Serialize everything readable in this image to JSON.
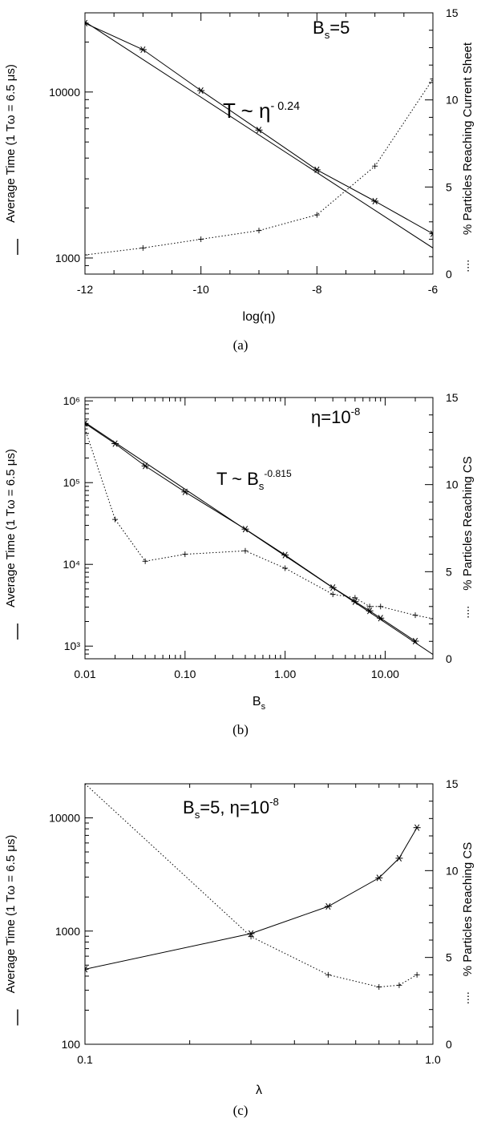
{
  "panels": [
    {
      "caption": "(a)",
      "annotation_main": "B",
      "annotation_sub": "s",
      "annotation_rest": "=5",
      "fit_label_base": "T ~ η",
      "fit_label_exp": "- 0.24",
      "xlabel": "log(η)",
      "ylabel_left": "Average Time (1 Tω = 6.5 μs)",
      "ylabel_right": "% Particles Reaching Current Sheet",
      "x_ticks": [
        "-12",
        "-10",
        "-8",
        "-6"
      ],
      "y_left_ticks": [
        "1000",
        "10000"
      ],
      "y_right_ticks": [
        "0",
        "5",
        "10",
        "15"
      ]
    },
    {
      "caption": "(b)",
      "annotation_main": "η=10",
      "annotation_sup": "-8",
      "fit_label_base": "T ~ B",
      "fit_label_sub": "s",
      "fit_label_exp": "-0.815",
      "xlabel": "B",
      "xlabel_sub": "s",
      "ylabel_left": "Average Time (1 Tω = 6.5 μs)",
      "ylabel_right": "% Particles Reaching CS",
      "x_ticks": [
        "0.01",
        "0.10",
        "1.00",
        "10.00"
      ],
      "y_left_ticks": [
        "10³",
        "10⁴",
        "10⁵",
        "10⁶"
      ],
      "y_right_ticks": [
        "0",
        "5",
        "10",
        "15"
      ]
    },
    {
      "caption": "(c)",
      "annotation_main": "B",
      "annotation_sub": "s",
      "annotation_rest": "=5, η=10",
      "annotation_sup": "-8",
      "xlabel": "λ",
      "ylabel_left": "Average Time (1 Tω = 6.5 μs)",
      "ylabel_right": "% Particles Reaching CS",
      "x_ticks": [
        "0.1",
        "1.0"
      ],
      "y_left_ticks": [
        "100",
        "1000",
        "10000"
      ],
      "y_right_ticks": [
        "0",
        "5",
        "10",
        "15"
      ]
    }
  ],
  "chart_data": [
    {
      "type": "line",
      "title": "",
      "xlabel": "log(η)",
      "ylabel": "Average Time (1 Tω = 6.5 μs)",
      "y2label": "% Particles Reaching Current Sheet",
      "xlim": [
        -12,
        -6
      ],
      "ylim": [
        800,
        30000
      ],
      "yscale": "log",
      "y2lim": [
        0,
        15
      ],
      "series": [
        {
          "style": "solid",
          "marker": "asterisk",
          "axis": "left",
          "x": [
            -12,
            -11,
            -10,
            -9,
            -8,
            -7,
            -6
          ],
          "values": [
            26000,
            18000,
            10200,
            5900,
            3400,
            2200,
            1400
          ]
        },
        {
          "style": "solid",
          "marker": "none",
          "axis": "left",
          "fit": true,
          "x": [
            -12,
            -6
          ],
          "values": [
            26500,
            1150
          ]
        },
        {
          "style": "dotted",
          "marker": "plus",
          "axis": "right",
          "x": [
            -12,
            -11,
            -10,
            -9,
            -8,
            -7,
            -6
          ],
          "values": [
            1.1,
            1.5,
            2.0,
            2.5,
            3.4,
            6.2,
            11.2
          ]
        }
      ]
    },
    {
      "type": "line",
      "title": "",
      "xlabel": "Bs",
      "ylabel": "Average Time (1 Tω = 6.5 μs)",
      "y2label": "% Particles Reaching CS",
      "xlim": [
        0.01,
        30
      ],
      "xscale": "log",
      "ylim": [
        700,
        1100000
      ],
      "yscale": "log",
      "y2lim": [
        0,
        15
      ],
      "series": [
        {
          "style": "solid",
          "marker": "asterisk",
          "axis": "left",
          "x": [
            0.01,
            0.02,
            0.04,
            0.1,
            0.4,
            1,
            3,
            5,
            7,
            9,
            20
          ],
          "values": [
            530000,
            300000,
            160000,
            77000,
            27000,
            13000,
            5200,
            3500,
            2700,
            2200,
            1150
          ]
        },
        {
          "style": "solid",
          "marker": "none",
          "axis": "left",
          "fit": true,
          "x": [
            0.01,
            30
          ],
          "values": [
            545000,
            790
          ]
        },
        {
          "style": "dotted",
          "marker": "plus",
          "axis": "right",
          "x": [
            0.01,
            0.02,
            0.04,
            0.1,
            0.4,
            1,
            3,
            5,
            7,
            9,
            20,
            30
          ],
          "values": [
            13.2,
            8.0,
            5.6,
            6.0,
            6.2,
            5.2,
            3.7,
            3.5,
            3.0,
            3.0,
            2.5,
            2.3
          ]
        }
      ]
    },
    {
      "type": "line",
      "title": "",
      "xlabel": "λ",
      "ylabel": "Average Time (1 Tω = 6.5 μs)",
      "y2label": "% Particles Reaching CS",
      "xlim": [
        0.1,
        1.0
      ],
      "xscale": "log",
      "ylim": [
        100,
        20000
      ],
      "yscale": "log",
      "y2lim": [
        0,
        15
      ],
      "series": [
        {
          "style": "solid",
          "marker": "asterisk",
          "axis": "left",
          "x": [
            0.1,
            0.3,
            0.5,
            0.7,
            0.8,
            0.9
          ],
          "values": [
            460,
            950,
            1650,
            2950,
            4400,
            8200
          ]
        },
        {
          "style": "dotted",
          "marker": "plus",
          "axis": "right",
          "x": [
            0.1,
            0.3,
            0.5,
            0.7,
            0.8,
            0.9
          ],
          "values": [
            15.0,
            6.2,
            4.0,
            3.3,
            3.4,
            4.0
          ]
        }
      ]
    }
  ]
}
